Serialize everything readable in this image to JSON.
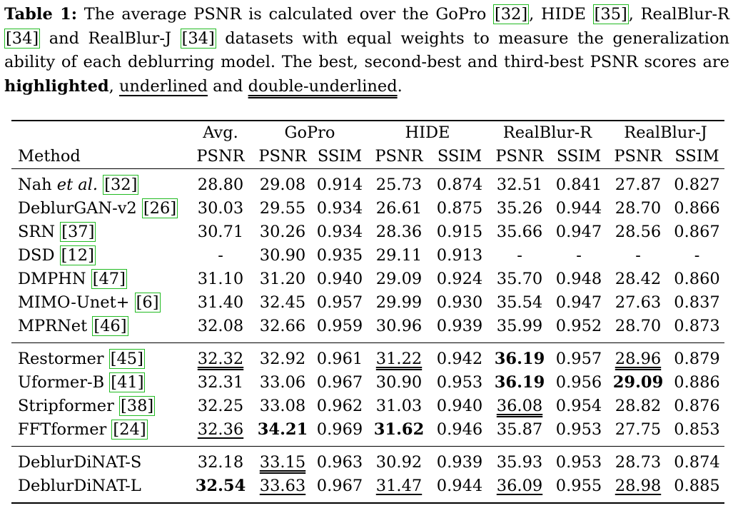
{
  "caption": {
    "label": "Table 1:",
    "text_a": " The average PSNR is calculated over the GoPro ",
    "ref_a": "[32]",
    "text_b": ", HIDE ",
    "ref_b": "[35]",
    "text_c": ", RealBlur-R ",
    "ref_c": "[34]",
    "text_d": " and RealBlur-J ",
    "ref_d": "[34]",
    "text_e": " datasets with equal weights to measure the generalization ability of each deblurring model. The best, second-best and third-best PSNR scores are ",
    "best": "highlighted",
    "text_f": ", ",
    "second": "underlined",
    "text_g": " and ",
    "third": "double-underlined",
    "text_h": "."
  },
  "headers": {
    "avg": "Avg.",
    "gopro": "GoPro",
    "hide": "HIDE",
    "realblur_r": "RealBlur-R",
    "realblur_j": "RealBlur-J",
    "method": "Method",
    "psnr": "PSNR",
    "ssim": "SSIM"
  },
  "rows": [
    {
      "name": "Nah ",
      "etal": "et al.",
      "ref": "[32]",
      "cells": [
        "28.80",
        "29.08",
        "0.914",
        "25.73",
        "0.874",
        "32.51",
        "0.841",
        "27.87",
        "0.827"
      ]
    },
    {
      "name": "DeblurGAN-v2 ",
      "ref": "[26]",
      "cells": [
        "30.03",
        "29.55",
        "0.934",
        "26.61",
        "0.875",
        "35.26",
        "0.944",
        "28.70",
        "0.866"
      ]
    },
    {
      "name": "SRN ",
      "ref": "[37]",
      "cells": [
        "30.71",
        "30.26",
        "0.934",
        "28.36",
        "0.915",
        "35.66",
        "0.947",
        "28.56",
        "0.867"
      ]
    },
    {
      "name": "DSD ",
      "ref": "[12]",
      "cells": [
        "-",
        "30.90",
        "0.935",
        "29.11",
        "0.913",
        "-",
        "-",
        "-",
        "-"
      ]
    },
    {
      "name": "DMPHN ",
      "ref": "[47]",
      "cells": [
        "31.10",
        "31.20",
        "0.940",
        "29.09",
        "0.924",
        "35.70",
        "0.948",
        "28.42",
        "0.860"
      ]
    },
    {
      "name": "MIMO-Unet+ ",
      "ref": "[6]",
      "cells": [
        "31.40",
        "32.45",
        "0.957",
        "29.99",
        "0.930",
        "35.54",
        "0.947",
        "27.63",
        "0.837"
      ]
    },
    {
      "name": "MPRNet ",
      "ref": "[46]",
      "cells": [
        "32.08",
        "32.66",
        "0.959",
        "30.96",
        "0.939",
        "35.99",
        "0.952",
        "28.70",
        "0.873"
      ]
    },
    {
      "name": "Restormer ",
      "ref": "[45]",
      "cells": [
        "32.32",
        "32.92",
        "0.961",
        "31.22",
        "0.942",
        "36.19",
        "0.957",
        "28.96",
        "0.879"
      ]
    },
    {
      "name": "Uformer-B ",
      "ref": "[41]",
      "cells": [
        "32.31",
        "33.06",
        "0.967",
        "30.90",
        "0.953",
        "36.19",
        "0.956",
        "29.09",
        "0.886"
      ]
    },
    {
      "name": "Stripformer ",
      "ref": "[38]",
      "cells": [
        "32.25",
        "33.08",
        "0.962",
        "31.03",
        "0.940",
        "36.08",
        "0.954",
        "28.82",
        "0.876"
      ]
    },
    {
      "name": "FFTformer ",
      "ref": "[24]",
      "cells": [
        "32.36",
        "34.21",
        "0.969",
        "31.62",
        "0.946",
        "35.87",
        "0.953",
        "27.75",
        "0.853"
      ]
    },
    {
      "name": "DeblurDiNAT-S",
      "cells": [
        "32.18",
        "33.15",
        "0.963",
        "30.92",
        "0.939",
        "35.93",
        "0.953",
        "28.73",
        "0.874"
      ]
    },
    {
      "name": "DeblurDiNAT-L",
      "cells": [
        "32.54",
        "33.63",
        "0.967",
        "31.47",
        "0.944",
        "36.09",
        "0.955",
        "28.98",
        "0.885"
      ]
    }
  ]
}
